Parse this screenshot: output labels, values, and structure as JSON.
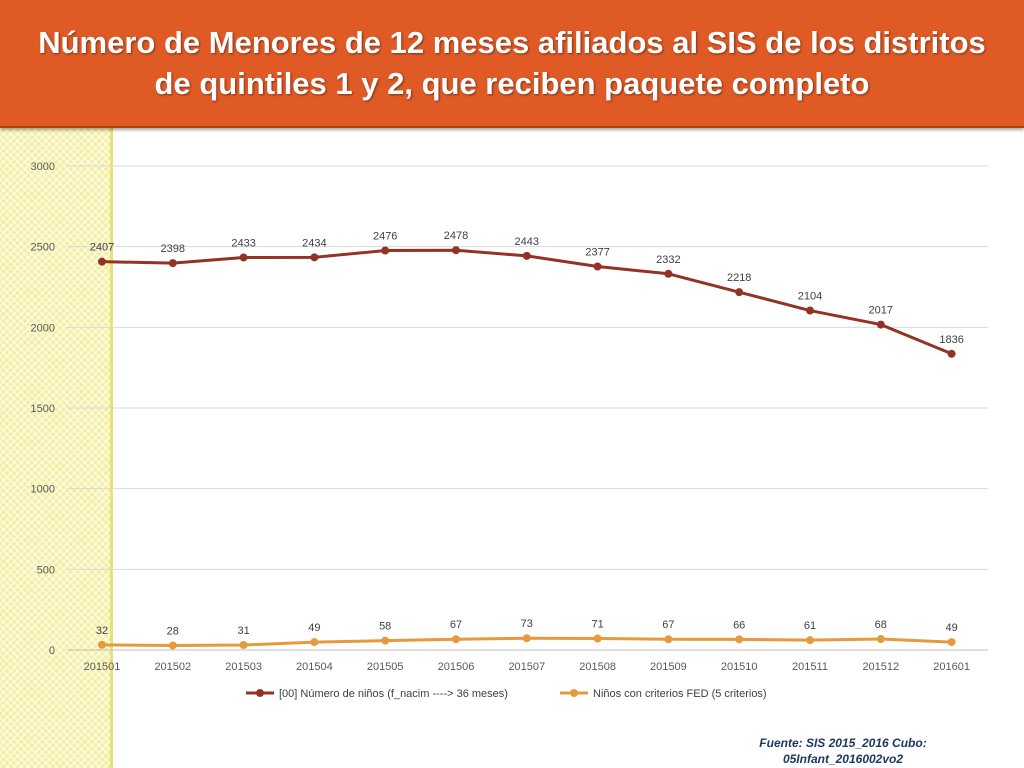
{
  "header": {
    "title": "Número de Menores de 12 meses afiliados al SIS de  los distritos de quintiles 1 y 2, que reciben paquete completo"
  },
  "source": {
    "line1": "Fuente: SIS 2015_2016 Cubo:",
    "line2": "05Infant_2016002vo2"
  },
  "colors": {
    "header_bg": "#e05a26",
    "series_1": "#933325",
    "series_2": "#e59a3c"
  },
  "chart_data": {
    "type": "line",
    "categories": [
      "201501",
      "201502",
      "201503",
      "201504",
      "201505",
      "201506",
      "201507",
      "201508",
      "201509",
      "201510",
      "201511",
      "201512",
      "201601"
    ],
    "y_ticks": [
      "0",
      "500",
      "1000",
      "1500",
      "2000",
      "2500",
      "3000"
    ],
    "ylim": [
      0,
      3000
    ],
    "grid": true,
    "legend_position": "bottom",
    "series": [
      {
        "name": "[00] Número de niños (f_nacim ----> 36 meses)",
        "color": "#933325",
        "values": [
          2407,
          2398,
          2433,
          2434,
          2476,
          2478,
          2443,
          2377,
          2332,
          2218,
          2104,
          2017,
          1836
        ],
        "labels": [
          "2407",
          "2398",
          "2433",
          "2434",
          "2476",
          "2478",
          "2443",
          "2377",
          "2332",
          "2218",
          "2104",
          "2017",
          "1836"
        ]
      },
      {
        "name": "Niños con criterios FED (5 criterios)",
        "color": "#e59a3c",
        "values": [
          32,
          28,
          31,
          49,
          58,
          67,
          73,
          71,
          67,
          66,
          61,
          68,
          49
        ],
        "labels": [
          "32",
          "28",
          "31",
          "49",
          "58",
          "67",
          "73",
          "71",
          "67",
          "66",
          "61",
          "68",
          "49"
        ]
      }
    ]
  }
}
